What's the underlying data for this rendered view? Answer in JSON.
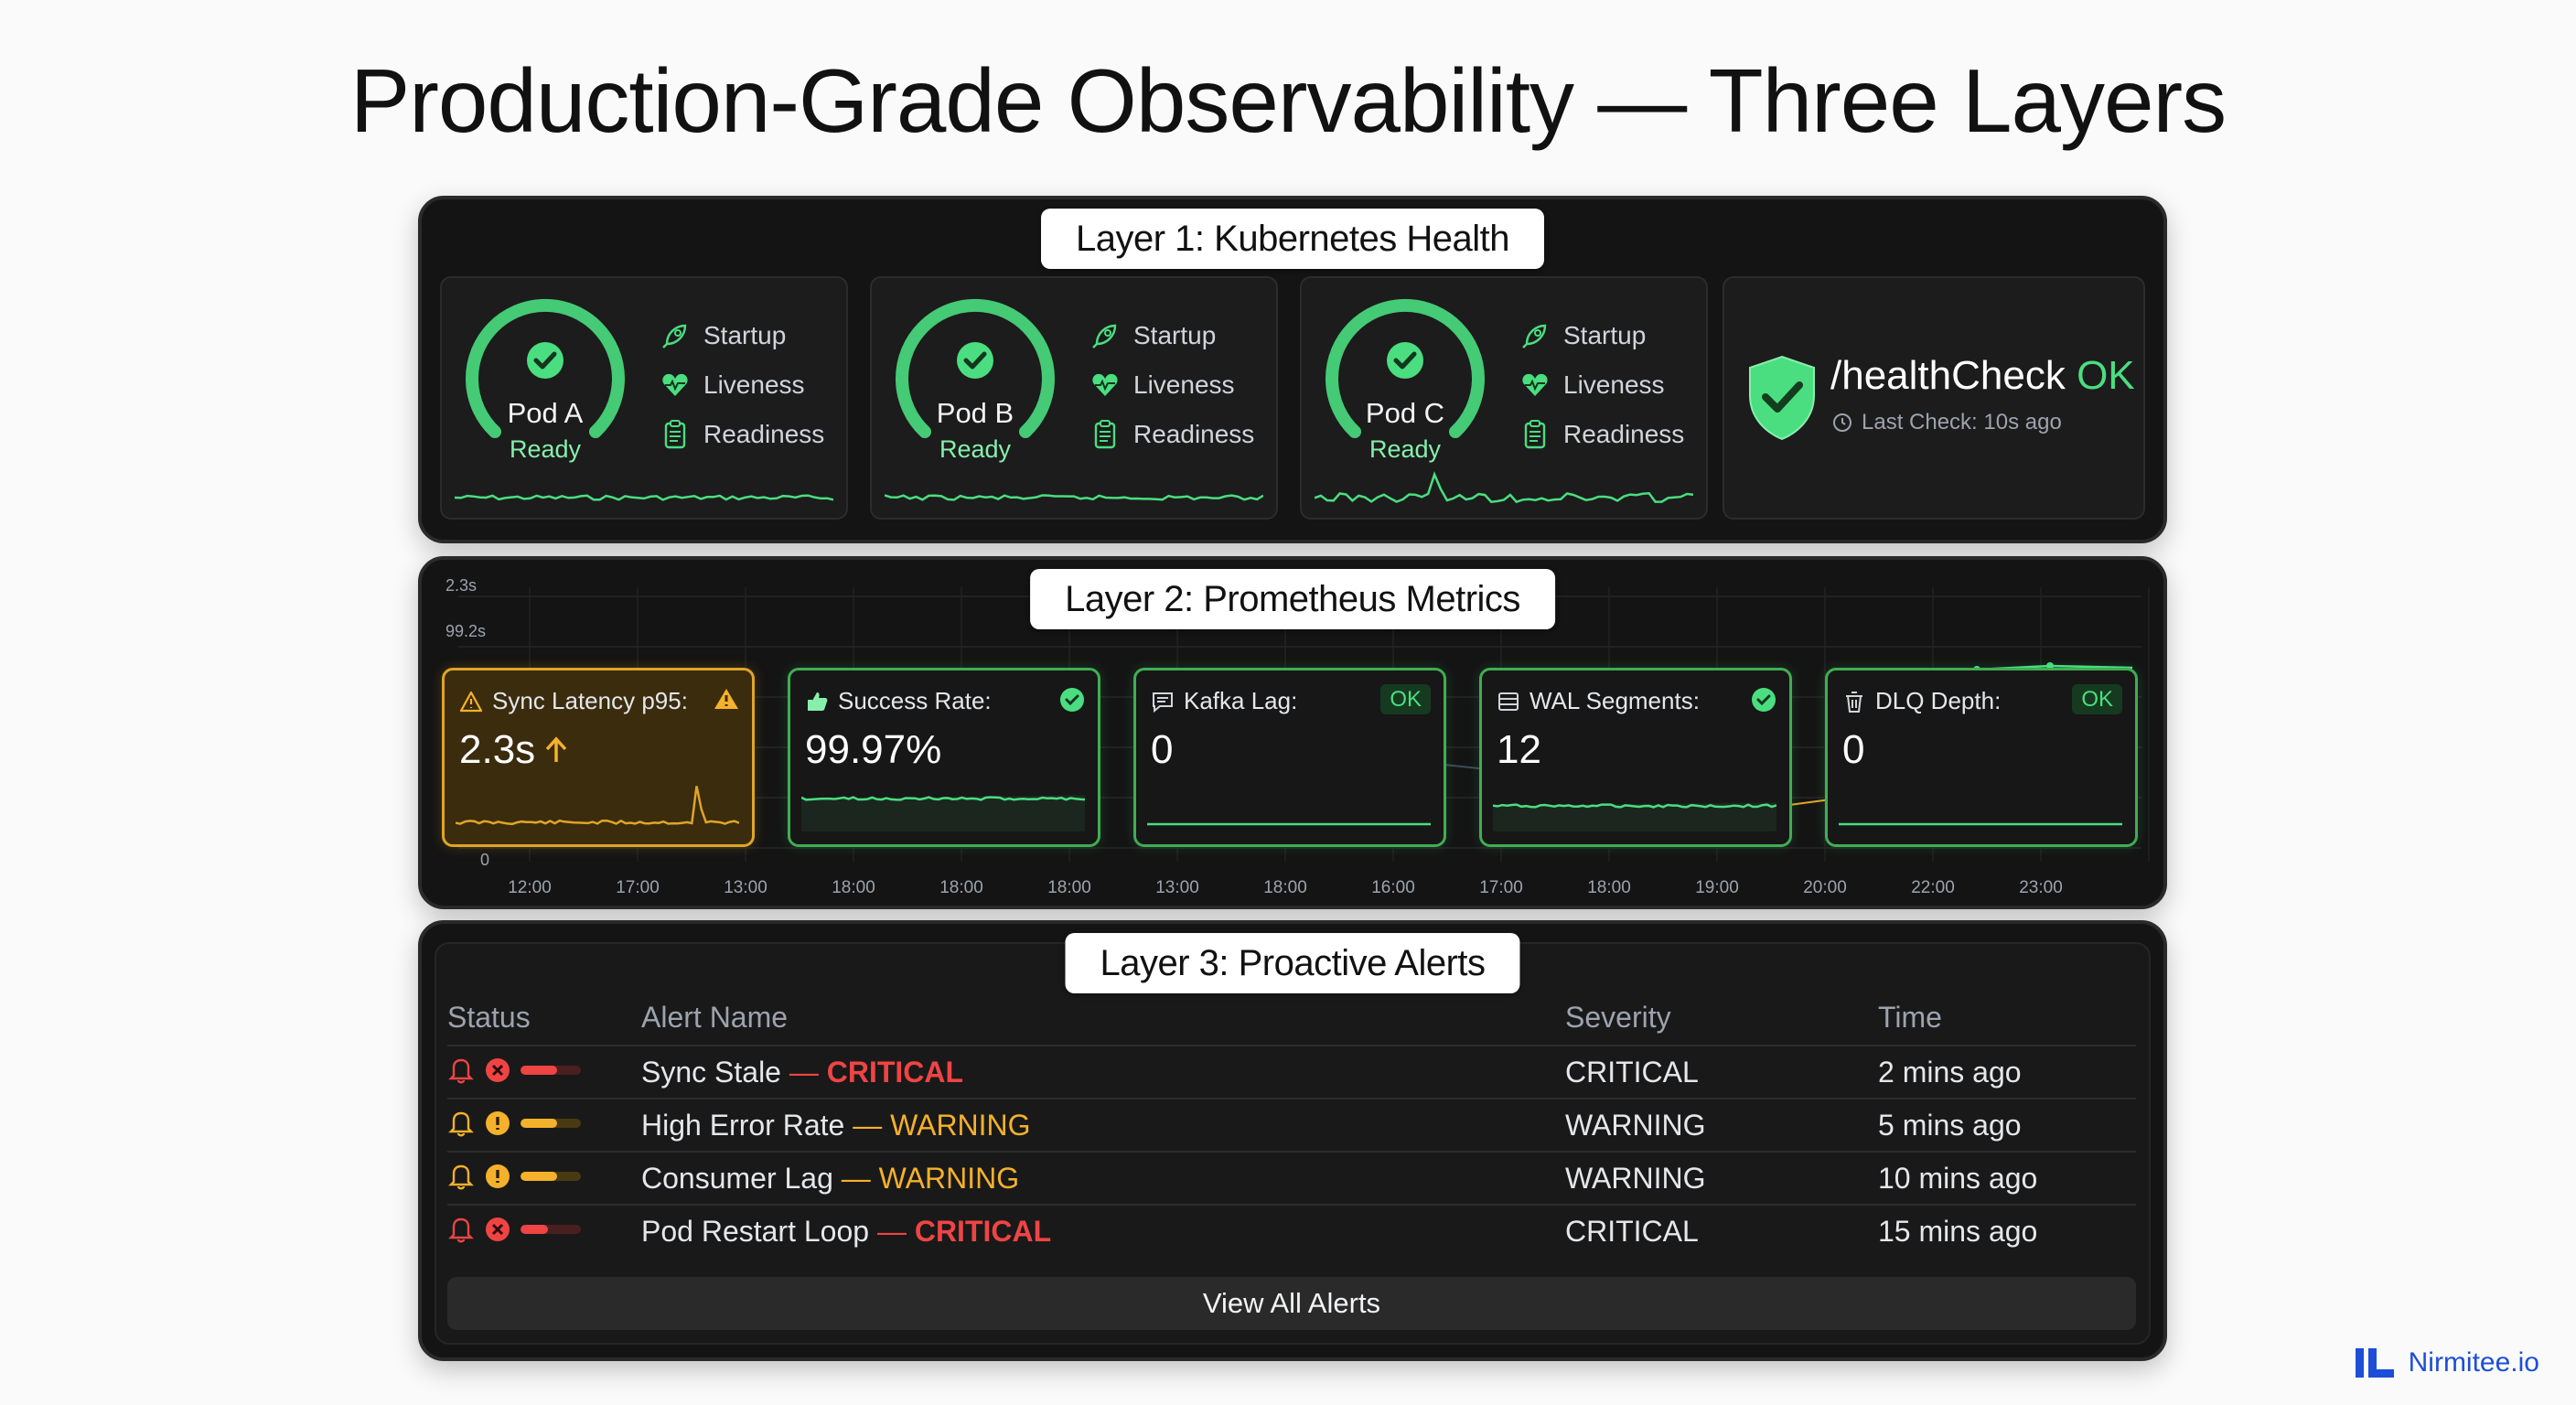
{
  "page": {
    "title": "Production-Grade Observability — Three Layers"
  },
  "layer1": {
    "tag": "Layer 1: Kubernetes Health",
    "pods": [
      {
        "name": "Pod A",
        "status": "Ready"
      },
      {
        "name": "Pod B",
        "status": "Ready"
      },
      {
        "name": "Pod C",
        "status": "Ready"
      }
    ],
    "probes": [
      "Startup",
      "Liveness",
      "Readiness"
    ],
    "health": {
      "endpoint": "/healthCheck",
      "status": "OK",
      "last_check": "Last Check: 10s ago"
    }
  },
  "layer2": {
    "tag": "Layer 2: Prometheus Metrics",
    "y_ticks": [
      "2.3s",
      "99.2s",
      "0"
    ],
    "x_ticks": [
      "12:00",
      "17:00",
      "13:00",
      "18:00",
      "18:00",
      "18:00",
      "13:00",
      "18:00",
      "16:00",
      "17:00",
      "18:00",
      "19:00",
      "20:00",
      "22:00",
      "23:00"
    ],
    "metrics": [
      {
        "label": "Sync Latency p95:",
        "value": "2.3s",
        "trend": "up",
        "state": "warning"
      },
      {
        "label": "Success Rate:",
        "value": "99.97%",
        "state": "ok-check"
      },
      {
        "label": "Kafka Lag:",
        "value": "0",
        "badge": "OK",
        "state": "ok-badge"
      },
      {
        "label": "WAL Segments:",
        "value": "12",
        "state": "ok-check"
      },
      {
        "label": "DLQ Depth:",
        "value": "0",
        "badge": "OK",
        "state": "ok-badge"
      }
    ]
  },
  "layer3": {
    "tag": "Layer 3: Proactive Alerts",
    "columns": {
      "status": "Status",
      "name": "Alert Name",
      "severity": "Severity",
      "time": "Time"
    },
    "alerts": [
      {
        "name": "Sync Stale",
        "sep": " — ",
        "level": "CRITICAL",
        "severity": "CRITICAL",
        "time": "2 mins ago",
        "bar_level": 0.6
      },
      {
        "name": "High Error Rate",
        "sep": " — ",
        "level": "WARNING",
        "severity": "WARNING",
        "time": "5 mins ago",
        "bar_level": 0.6
      },
      {
        "name": "Consumer Lag",
        "sep": " — ",
        "level": "WARNING",
        "severity": "WARNING",
        "time": "10 mins ago",
        "bar_level": 0.6
      },
      {
        "name": "Pod Restart Loop",
        "sep": " — ",
        "level": "CRITICAL",
        "severity": "CRITICAL",
        "time": "15 mins ago",
        "bar_level": 0.45
      }
    ],
    "view_all": "View All Alerts"
  },
  "brand": {
    "name": "Nirmitee.io"
  },
  "colors": {
    "ok": "#4ade80",
    "warning": "#f5b12b",
    "critical": "#ef4444"
  }
}
